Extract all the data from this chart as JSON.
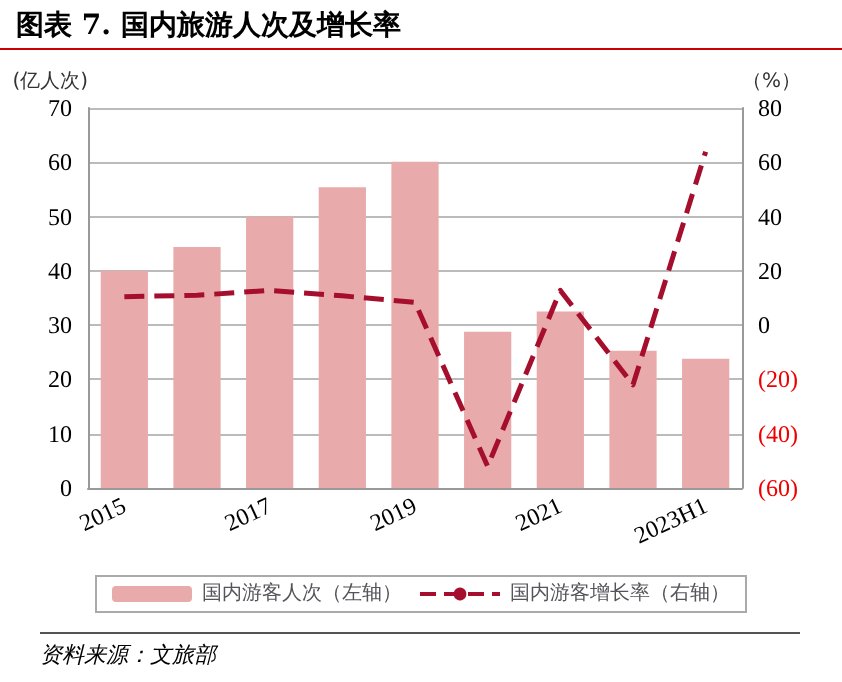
{
  "chart_data": {
    "type": "bar",
    "title": "图表 7. 国内旅游人次及增长率",
    "ylabel": "(亿人次)",
    "y2label": "（%）",
    "annotations": [
      "资料来源：文旅部"
    ],
    "categories": [
      "2015",
      null,
      "2017",
      null,
      "2019",
      null,
      "2021",
      null,
      "2023H1"
    ],
    "series": [
      {
        "name": "国内游客人次（左轴）",
        "color": "#e8aaaa",
        "values": [
          40,
          44.4,
          50,
          55.4,
          60.1,
          28.8,
          32.5,
          25.3,
          23.8
        ]
      },
      {
        "name": "国内游客增长率（右轴）",
        "type": "line",
        "axis": "y2",
        "color": "#a50f2d",
        "line_style": "dashed",
        "marker": "none",
        "values": [
          10.5,
          11,
          12.8,
          10.8,
          8.4,
          -52,
          12.8,
          -22,
          63.9
        ]
      }
    ],
    "ylim": [
      0,
      70
    ],
    "yticks": [
      0,
      10,
      20,
      30,
      40,
      50,
      60,
      70
    ],
    "y2lim": [
      -60,
      80
    ],
    "y2ticks": [
      {
        "value": -60,
        "label": "(60)"
      },
      {
        "value": -40,
        "label": "(40)"
      },
      {
        "value": -20,
        "label": "(20)"
      },
      0,
      20,
      40,
      60,
      80
    ],
    "grid": "y",
    "legend": "bottom"
  }
}
